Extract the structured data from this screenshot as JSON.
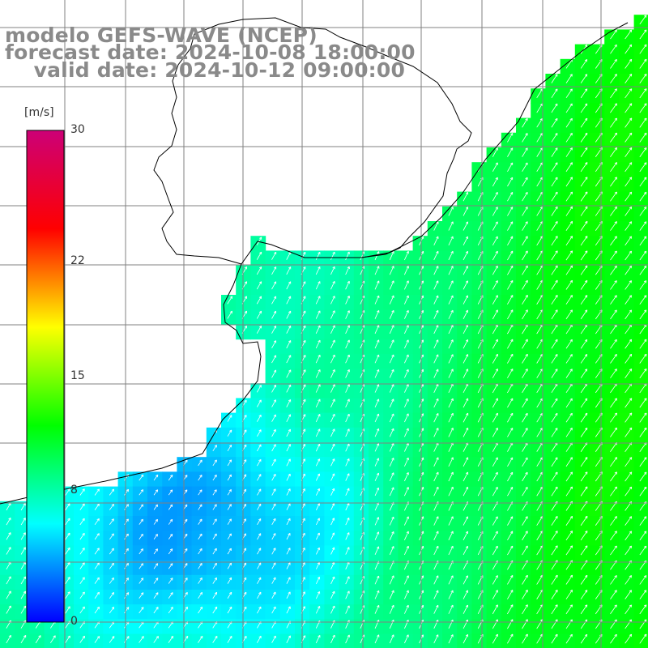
{
  "title": {
    "line1": "modelo GEFS-WAVE (NCEP)",
    "line2": "forecast date: 2024-10-08 18:00:00",
    "line3": "    valid date: 2024-10-12 09:00:00"
  },
  "colorbar": {
    "unit": "[m/s]",
    "min": 0,
    "max": 30,
    "tick_values": [
      0,
      8,
      15,
      22,
      30
    ],
    "tick_labels": [
      "0",
      "8",
      "15",
      "22",
      "30"
    ],
    "colors": [
      "#0000ff",
      "#00ffff",
      "#00ff00",
      "#ffff00",
      "#ff0000",
      "#cc0077"
    ]
  },
  "map": {
    "field": "wind speed with direction arrows",
    "land_color": "#ffffff",
    "coastline_color": "#000000",
    "grid_color": "#808080",
    "speed_zones": [
      {
        "zone": "south-west calm area",
        "speed": 4
      },
      {
        "zone": "coastal band",
        "speed": 8
      },
      {
        "zone": "open ocean east",
        "speed": 12
      }
    ]
  }
}
